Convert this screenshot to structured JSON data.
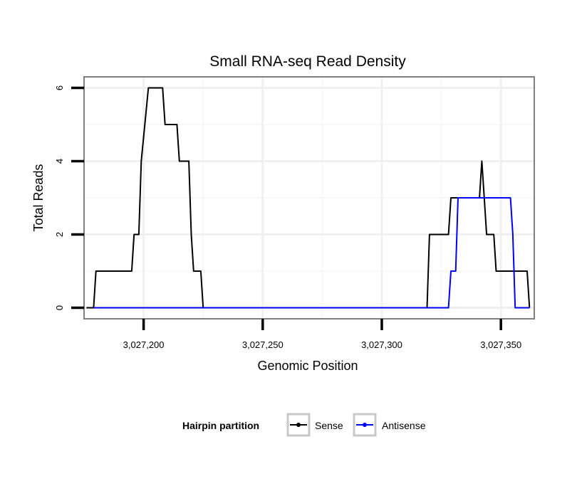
{
  "chart_data": {
    "type": "line",
    "title": "Small RNA-seq Read Density",
    "xlabel": "Genomic Position",
    "ylabel": "Total Reads",
    "xlim": [
      3027175,
      3027364
    ],
    "ylim": [
      -0.3,
      6.3
    ],
    "x_ticks": [
      3027200,
      3027250,
      3027300,
      3027350
    ],
    "x_tick_labels": [
      "3,027,200",
      "3,027,250",
      "3,027,300",
      "3,027,350"
    ],
    "y_ticks": [
      0,
      2,
      4,
      6
    ],
    "y_tick_labels": [
      "0",
      "2",
      "4",
      "6"
    ],
    "legend": {
      "title": "Hairpin partition",
      "position": "bottom"
    },
    "series": [
      {
        "name": "Sense",
        "color": "#000000",
        "x": [
          3027176,
          3027179,
          3027180,
          3027195,
          3027196,
          3027198,
          3027199,
          3027202,
          3027203,
          3027208,
          3027209,
          3027214,
          3027215,
          3027219,
          3027220,
          3027221,
          3027224,
          3027225,
          3027319,
          3027320,
          3027328,
          3027329,
          3027336,
          3027337,
          3027341,
          3027342,
          3027343,
          3027344,
          3027345,
          3027347,
          3027348,
          3027353,
          3027355,
          3027360,
          3027361,
          3027362
        ],
        "y": [
          0,
          0,
          1,
          1,
          2,
          2,
          4,
          6,
          6,
          6,
          5,
          5,
          4,
          4,
          2,
          1,
          1,
          0,
          0,
          2,
          2,
          3,
          3,
          3,
          3,
          4,
          3,
          2,
          2,
          2,
          1,
          1,
          1,
          1,
          1,
          0
        ]
      },
      {
        "name": "Antisense",
        "color": "#0000ff",
        "x": [
          3027179,
          3027225,
          3027328,
          3027329,
          3027331,
          3027332,
          3027354,
          3027355,
          3027356,
          3027362
        ],
        "y": [
          0,
          0,
          0,
          1,
          1,
          3,
          3,
          2,
          0,
          0
        ]
      }
    ]
  }
}
